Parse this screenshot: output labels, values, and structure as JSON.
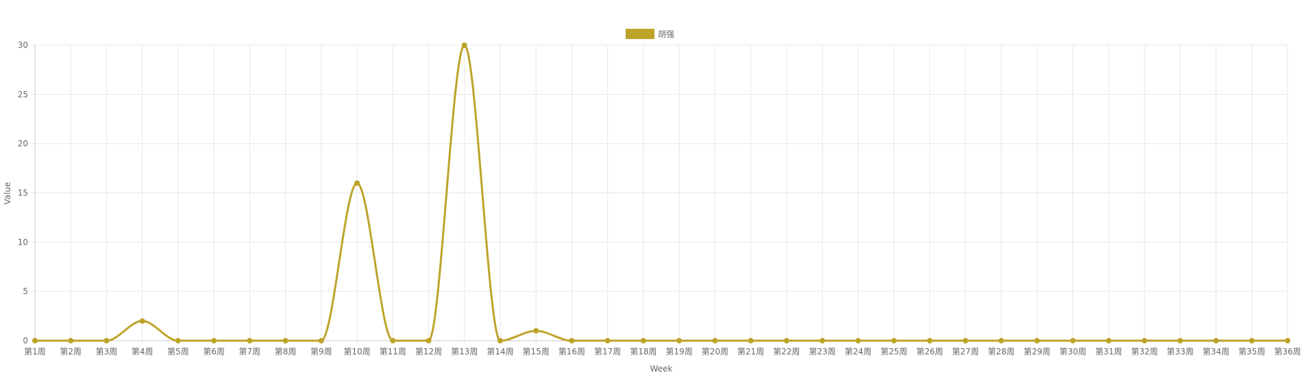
{
  "chart_data": {
    "type": "line",
    "title": "",
    "xlabel": "Week",
    "ylabel": "Value",
    "ylim": [
      0,
      30
    ],
    "yticks": [
      0,
      5,
      10,
      15,
      20,
      25,
      30
    ],
    "grid": true,
    "legend_position": "top-center",
    "categories": [
      "第1周",
      "第2周",
      "第3周",
      "第4周",
      "第5周",
      "第6周",
      "第7周",
      "第8周",
      "第9周",
      "第10周",
      "第11周",
      "第12周",
      "第13周",
      "第14周",
      "第15周",
      "第16周",
      "第17周",
      "第18周",
      "第19周",
      "第20周",
      "第21周",
      "第22周",
      "第23周",
      "第24周",
      "第25周",
      "第26周",
      "第27周",
      "第28周",
      "第29周",
      "第30周",
      "第31周",
      "第32周",
      "第33周",
      "第34周",
      "第35周",
      "第36周"
    ],
    "series": [
      {
        "name": "胡强",
        "color": "#bda329",
        "values": [
          0,
          0,
          0,
          2,
          0,
          0,
          0,
          0,
          0,
          16,
          0,
          0,
          30,
          0,
          1,
          0,
          0,
          0,
          0,
          0,
          0,
          0,
          0,
          0,
          0,
          0,
          0,
          0,
          0,
          0,
          0,
          0,
          0,
          0,
          0,
          0
        ]
      }
    ]
  }
}
